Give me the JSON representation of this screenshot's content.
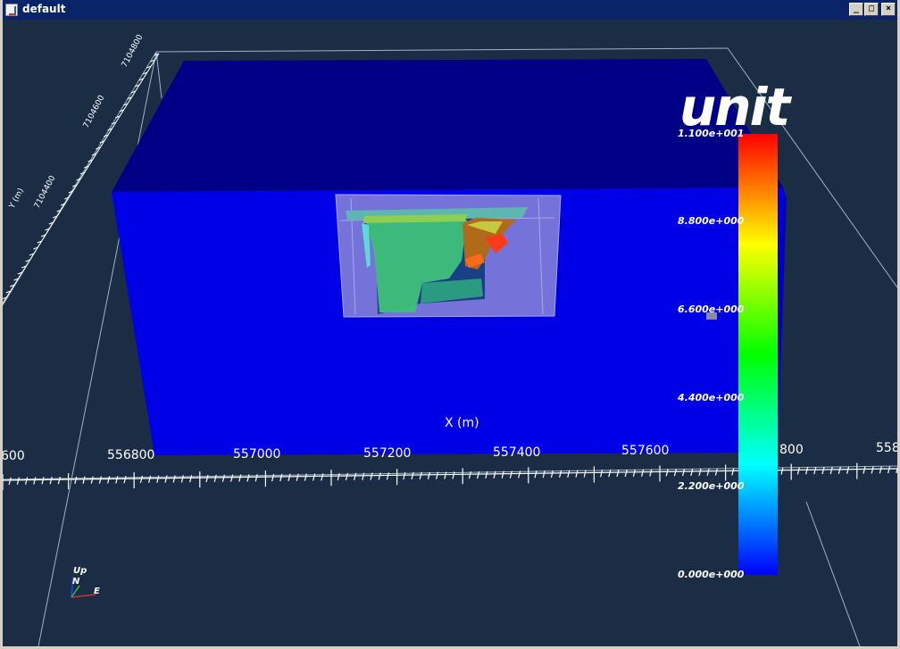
{
  "window": {
    "title": "default",
    "controls": {
      "minimize": "_",
      "maximize": "□",
      "close": "×"
    }
  },
  "scene": {
    "scalar_title": "unit",
    "x_axis_title": "X (m)",
    "y_axis_title": "Y (m)",
    "x_ticks": [
      "556800",
      "557000",
      "557200",
      "557400",
      "557600"
    ],
    "x_ticks_partial": [
      "600",
      "800",
      "558"
    ],
    "y_ticks": [
      "7104800",
      "7104600",
      "7104400"
    ],
    "orientation": {
      "up": "Up",
      "north": "N",
      "east": "E"
    }
  },
  "colorbar": {
    "labels": [
      "1.100e+001",
      "8.800e+000",
      "6.600e+000",
      "4.400e+000",
      "2.200e+000",
      "0.000e+000"
    ],
    "colors": [
      "#ff0000",
      "#ff8000",
      "#ffff00",
      "#80ff00",
      "#00ff00",
      "#00ff80",
      "#00ffff",
      "#0080ff",
      "#0000ff"
    ]
  },
  "colors": {
    "background": "#1b2d44",
    "block_front": "#0000e6",
    "block_top": "#000086",
    "inner_box": "#7b79d8"
  }
}
